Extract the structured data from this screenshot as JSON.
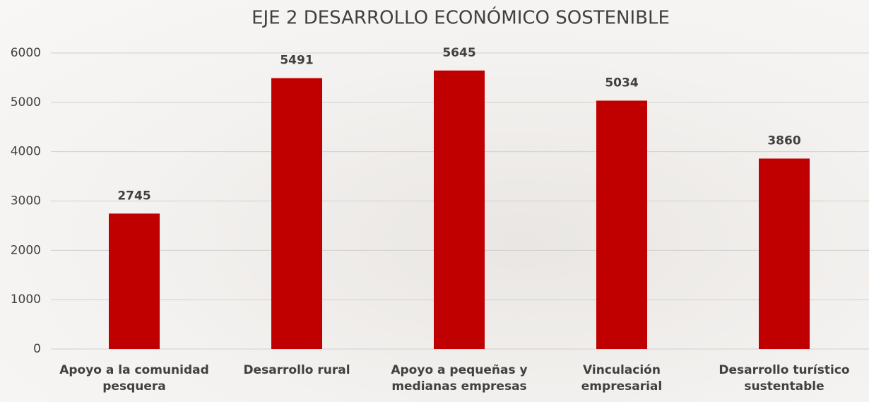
{
  "chart_data": {
    "type": "bar",
    "title": "EJE 2 DESARROLLO ECONÓMICO SOSTENIBLE",
    "categories": [
      "Apoyo a la comunidad\npesquera",
      "Desarrollo rural",
      "Apoyo a pequeñas y\nmedianas empresas",
      "Vinculación\nempresarial",
      "Desarrollo turístico\nsustentable"
    ],
    "values": [
      2745,
      5491,
      5645,
      5034,
      3860
    ],
    "color": "#c00000",
    "ylim": [
      0,
      6000
    ],
    "yticks": [
      0,
      1000,
      2000,
      3000,
      4000,
      5000,
      6000
    ],
    "grid": true
  }
}
